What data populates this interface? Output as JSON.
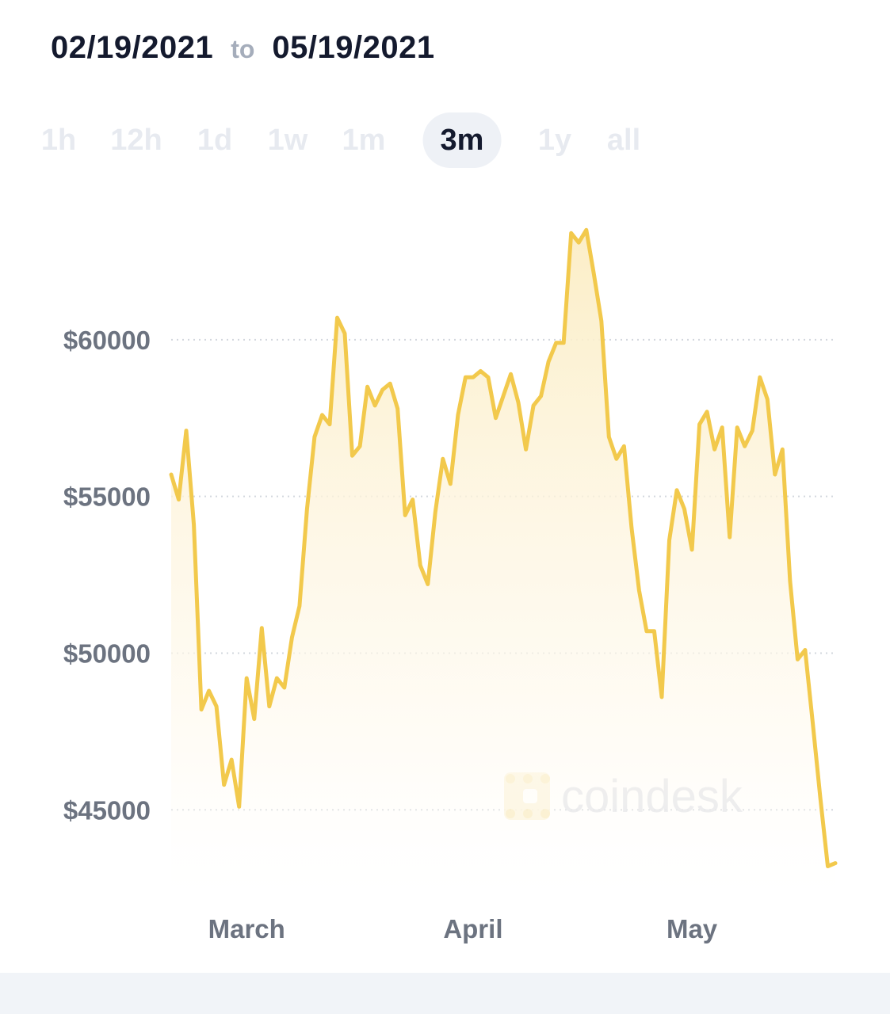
{
  "header": {
    "start_date": "02/19/2021",
    "separator": "to",
    "end_date": "05/19/2021"
  },
  "ranges": [
    {
      "label": "1h",
      "active": false
    },
    {
      "label": "12h",
      "active": false
    },
    {
      "label": "1d",
      "active": false
    },
    {
      "label": "1w",
      "active": false
    },
    {
      "label": "1m",
      "active": false
    },
    {
      "label": "3m",
      "active": true
    },
    {
      "label": "1y",
      "active": false
    },
    {
      "label": "all",
      "active": false
    }
  ],
  "watermark": "coindesk",
  "colors": {
    "line": "#f2c94c",
    "fill_top": "#fbedc4",
    "grid": "#d3d7de",
    "axis_text": "#6c7380",
    "active_pill": "#eef1f6"
  },
  "chart_data": {
    "type": "area",
    "x_tick_labels": [
      "March",
      "April",
      "May"
    ],
    "x_tick_days": [
      10,
      40,
      69
    ],
    "y_ticks": [
      45000,
      50000,
      55000,
      60000
    ],
    "y_tick_labels": [
      "$45000",
      "$50000",
      "$55000",
      "$60000"
    ],
    "ylim": [
      42000,
      65000
    ],
    "grid": true,
    "series": [
      {
        "values": [
          [
            0,
            55700
          ],
          [
            1,
            54900
          ],
          [
            2,
            57100
          ],
          [
            3,
            54100
          ],
          [
            4,
            48200
          ],
          [
            5,
            48800
          ],
          [
            6,
            48300
          ],
          [
            7,
            45800
          ],
          [
            8,
            46600
          ],
          [
            9,
            45100
          ],
          [
            10,
            49200
          ],
          [
            11,
            47900
          ],
          [
            12,
            50800
          ],
          [
            13,
            48300
          ],
          [
            14,
            49200
          ],
          [
            15,
            48900
          ],
          [
            16,
            50500
          ],
          [
            17,
            51500
          ],
          [
            18,
            54600
          ],
          [
            19,
            56900
          ],
          [
            20,
            57600
          ],
          [
            21,
            57300
          ],
          [
            22,
            60700
          ],
          [
            23,
            60200
          ],
          [
            24,
            56300
          ],
          [
            25,
            56600
          ],
          [
            26,
            58500
          ],
          [
            27,
            57900
          ],
          [
            28,
            58400
          ],
          [
            29,
            58600
          ],
          [
            30,
            57800
          ],
          [
            31,
            54400
          ],
          [
            32,
            54900
          ],
          [
            33,
            52800
          ],
          [
            34,
            52200
          ],
          [
            35,
            54500
          ],
          [
            36,
            56200
          ],
          [
            37,
            55400
          ],
          [
            38,
            57600
          ],
          [
            39,
            58800
          ],
          [
            40,
            58800
          ],
          [
            41,
            59000
          ],
          [
            42,
            58800
          ],
          [
            43,
            57500
          ],
          [
            44,
            58200
          ],
          [
            45,
            58900
          ],
          [
            46,
            58000
          ],
          [
            47,
            56500
          ],
          [
            48,
            57900
          ],
          [
            49,
            58200
          ],
          [
            50,
            59300
          ],
          [
            51,
            59900
          ],
          [
            52,
            59900
          ],
          [
            53,
            63400
          ],
          [
            54,
            63100
          ],
          [
            55,
            63500
          ],
          [
            56,
            62100
          ],
          [
            57,
            60600
          ],
          [
            58,
            56900
          ],
          [
            59,
            56200
          ],
          [
            60,
            56600
          ],
          [
            61,
            54000
          ],
          [
            62,
            52000
          ],
          [
            63,
            50700
          ],
          [
            64,
            50700
          ],
          [
            65,
            48600
          ],
          [
            66,
            53600
          ],
          [
            67,
            55200
          ],
          [
            68,
            54600
          ],
          [
            69,
            53300
          ],
          [
            70,
            57300
          ],
          [
            71,
            57700
          ],
          [
            72,
            56500
          ],
          [
            73,
            57200
          ],
          [
            74,
            53700
          ],
          [
            75,
            57200
          ],
          [
            76,
            56600
          ],
          [
            77,
            57100
          ],
          [
            78,
            58800
          ],
          [
            79,
            58100
          ],
          [
            80,
            55700
          ],
          [
            81,
            56500
          ],
          [
            82,
            52300
          ],
          [
            83,
            49800
          ],
          [
            84,
            50100
          ],
          [
            85,
            47800
          ],
          [
            86,
            45400
          ],
          [
            87,
            43200
          ],
          [
            88,
            43300
          ]
        ]
      }
    ]
  }
}
